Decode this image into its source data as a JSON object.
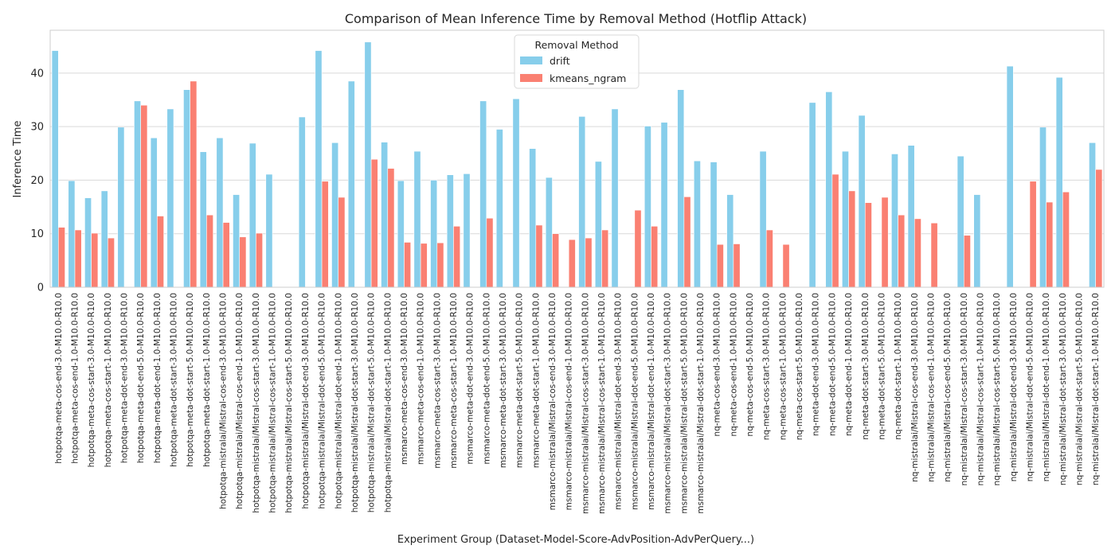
{
  "chart_data": {
    "type": "bar",
    "title": "Comparison of Mean Inference Time by Removal Method (Hotflip Attack)",
    "xlabel": "Experiment Group (Dataset-Model-Score-AdvPosition-AdvPerQuery...)",
    "ylabel": "Inference Time",
    "ylim": [
      0,
      48
    ],
    "yticks": [
      0,
      10,
      20,
      30,
      40
    ],
    "grid": true,
    "legend": {
      "title": "Removal Method",
      "placement": "top-center"
    },
    "categories": [
      "hotpotqa-meta-cos-end-3.0-M10.0-R10.0",
      "hotpotqa-meta-cos-end-1.0-M10.0-R10.0",
      "hotpotqa-meta-cos-start-3.0-M10.0-R10.0",
      "hotpotqa-meta-cos-start-1.0-M10.0-R10.0",
      "hotpotqa-meta-dot-end-3.0-M10.0-R10.0",
      "hotpotqa-meta-dot-end-5.0-M10.0-R10.0",
      "hotpotqa-meta-dot-end-1.0-M10.0-R10.0",
      "hotpotqa-meta-dot-start-3.0-M10.0-R10.0",
      "hotpotqa-meta-dot-start-5.0-M10.0-R10.0",
      "hotpotqa-meta-dot-start-1.0-M10.0-R10.0",
      "hotpotqa-mistralai/Mistral-cos-end-3.0-M10.0-R10.0",
      "hotpotqa-mistralai/Mistral-cos-end-1.0-M10.0-R10.0",
      "hotpotqa-mistralai/Mistral-cos-start-3.0-M10.0-R10.0",
      "hotpotqa-mistralai/Mistral-cos-start-1.0-M10.0-R10.0",
      "hotpotqa-mistralai/Mistral-cos-start-5.0-M10.0-R10.0",
      "hotpotqa-mistralai/Mistral-dot-end-3.0-M10.0-R10.0",
      "hotpotqa-mistralai/Mistral-dot-end-5.0-M10.0-R10.0",
      "hotpotqa-mistralai/Mistral-dot-end-1.0-M10.0-R10.0",
      "hotpotqa-mistralai/Mistral-dot-start-3.0-M10.0-R10.0",
      "hotpotqa-mistralai/Mistral-dot-start-5.0-M10.0-R10.0",
      "hotpotqa-mistralai/Mistral-dot-start-1.0-M10.0-R10.0",
      "msmarco-meta-cos-end-3.0-M10.0-R10.0",
      "msmarco-meta-cos-end-1.0-M10.0-R10.0",
      "msmarco-meta-cos-start-3.0-M10.0-R10.0",
      "msmarco-meta-cos-start-1.0-M10.0-R10.0",
      "msmarco-meta-dot-end-3.0-M10.0-R10.0",
      "msmarco-meta-dot-end-5.0-M10.0-R10.0",
      "msmarco-meta-dot-start-3.0-M10.0-R10.0",
      "msmarco-meta-dot-start-5.0-M10.0-R10.0",
      "msmarco-meta-dot-start-1.0-M10.0-R10.0",
      "msmarco-mistralai/Mistral-cos-end-3.0-M10.0-R10.0",
      "msmarco-mistralai/Mistral-cos-end-1.0-M10.0-R10.0",
      "msmarco-mistralai/Mistral-cos-start-3.0-M10.0-R10.0",
      "msmarco-mistralai/Mistral-cos-start-1.0-M10.0-R10.0",
      "msmarco-mistralai/Mistral-dot-end-3.0-M10.0-R10.0",
      "msmarco-mistralai/Mistral-dot-end-5.0-M10.0-R10.0",
      "msmarco-mistralai/Mistral-dot-end-1.0-M10.0-R10.0",
      "msmarco-mistralai/Mistral-dot-start-3.0-M10.0-R10.0",
      "msmarco-mistralai/Mistral-dot-start-5.0-M10.0-R10.0",
      "msmarco-mistralai/Mistral-dot-start-1.0-M10.0-R10.0",
      "nq-meta-cos-end-3.0-M10.0-R10.0",
      "nq-meta-cos-end-1.0-M10.0-R10.0",
      "nq-meta-cos-end-5.0-M10.0-R10.0",
      "nq-meta-cos-start-3.0-M10.0-R10.0",
      "nq-meta-cos-start-1.0-M10.0-R10.0",
      "nq-meta-cos-start-5.0-M10.0-R10.0",
      "nq-meta-dot-end-3.0-M10.0-R10.0",
      "nq-meta-dot-end-5.0-M10.0-R10.0",
      "nq-meta-dot-end-1.0-M10.0-R10.0",
      "nq-meta-dot-start-3.0-M10.0-R10.0",
      "nq-meta-dot-start-5.0-M10.0-R10.0",
      "nq-meta-dot-start-1.0-M10.0-R10.0",
      "nq-mistralai/Mistral-cos-end-3.0-M10.0-R10.0",
      "nq-mistralai/Mistral-cos-end-1.0-M10.0-R10.0",
      "nq-mistralai/Mistral-cos-end-5.0-M10.0-R10.0",
      "nq-mistralai/Mistral-cos-start-3.0-M10.0-R10.0",
      "nq-mistralai/Mistral-cos-start-1.0-M10.0-R10.0",
      "nq-mistralai/Mistral-cos-start-5.0-M10.0-R10.0",
      "nq-mistralai/Mistral-dot-end-3.0-M10.0-R10.0",
      "nq-mistralai/Mistral-dot-end-5.0-M10.0-R10.0",
      "nq-mistralai/Mistral-dot-end-1.0-M10.0-R10.0",
      "nq-mistralai/Mistral-dot-start-3.0-M10.0-R10.0",
      "nq-mistralai/Mistral-dot-start-5.0-M10.0-R10.0",
      "nq-mistralai/Mistral-dot-start-1.0-M10.0-R10.0"
    ],
    "series": [
      {
        "name": "drift",
        "color": "#87ceeb",
        "values": [
          44.2,
          19.9,
          16.7,
          18.0,
          29.9,
          34.8,
          27.9,
          33.3,
          36.9,
          25.3,
          27.9,
          17.3,
          26.9,
          21.1,
          null,
          31.8,
          44.2,
          27.0,
          38.5,
          45.8,
          27.1,
          19.9,
          25.4,
          20.0,
          21.0,
          21.2,
          34.8,
          29.5,
          35.2,
          25.9,
          20.5,
          null,
          31.9,
          23.5,
          33.3,
          null,
          30.1,
          30.8,
          36.9,
          23.6,
          23.4,
          17.3,
          null,
          25.4,
          null,
          null,
          34.5,
          36.5,
          25.4,
          32.1,
          null,
          24.9,
          26.5,
          null,
          null,
          24.5,
          17.3,
          null,
          41.3,
          null,
          29.9,
          39.2,
          null,
          27.0
        ]
      },
      {
        "name": "kmeans_ngram",
        "color": "#fa8072",
        "values": [
          11.2,
          10.7,
          10.1,
          9.2,
          null,
          34.0,
          13.3,
          null,
          38.5,
          13.5,
          12.1,
          9.4,
          10.1,
          null,
          null,
          null,
          19.8,
          16.8,
          null,
          23.9,
          22.2,
          8.4,
          8.2,
          8.3,
          11.4,
          null,
          12.9,
          null,
          null,
          11.6,
          10.0,
          8.9,
          9.2,
          10.7,
          null,
          14.4,
          11.4,
          null,
          16.9,
          null,
          8.0,
          8.1,
          null,
          10.7,
          8.0,
          null,
          null,
          21.1,
          18.0,
          15.8,
          16.8,
          13.5,
          12.8,
          12.0,
          null,
          9.7,
          null,
          null,
          null,
          19.8,
          15.9,
          17.8,
          null,
          22.0
        ]
      }
    ]
  }
}
